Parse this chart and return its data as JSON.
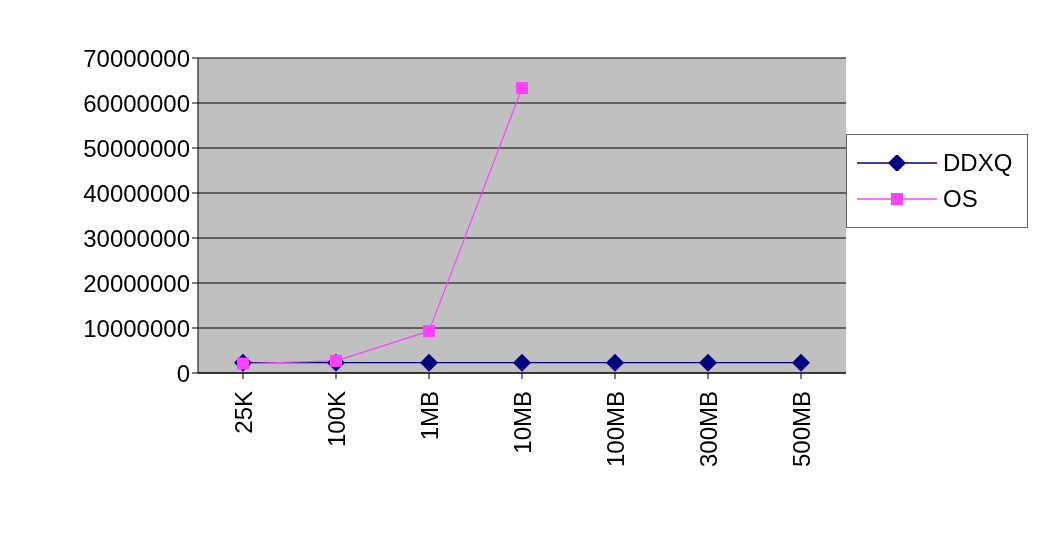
{
  "chart_data": {
    "type": "line",
    "categories": [
      "25K",
      "100K",
      "1MB",
      "10MB",
      "100MB",
      "300MB",
      "500MB"
    ],
    "series": [
      {
        "name": "DDXQ",
        "color": "#000080",
        "marker": "diamond",
        "values": [
          2300000,
          2300000,
          2300000,
          2300000,
          2300000,
          2300000,
          2300000
        ]
      },
      {
        "name": "OS",
        "color": "#ff40ff",
        "marker": "square",
        "values": [
          2100000,
          2700000,
          9300000,
          63300000,
          null,
          null,
          null
        ]
      }
    ],
    "ylim": [
      0,
      70000000
    ],
    "yticks": [
      0,
      10000000,
      20000000,
      30000000,
      40000000,
      50000000,
      60000000,
      70000000
    ],
    "grid": "y",
    "legend": "right"
  }
}
